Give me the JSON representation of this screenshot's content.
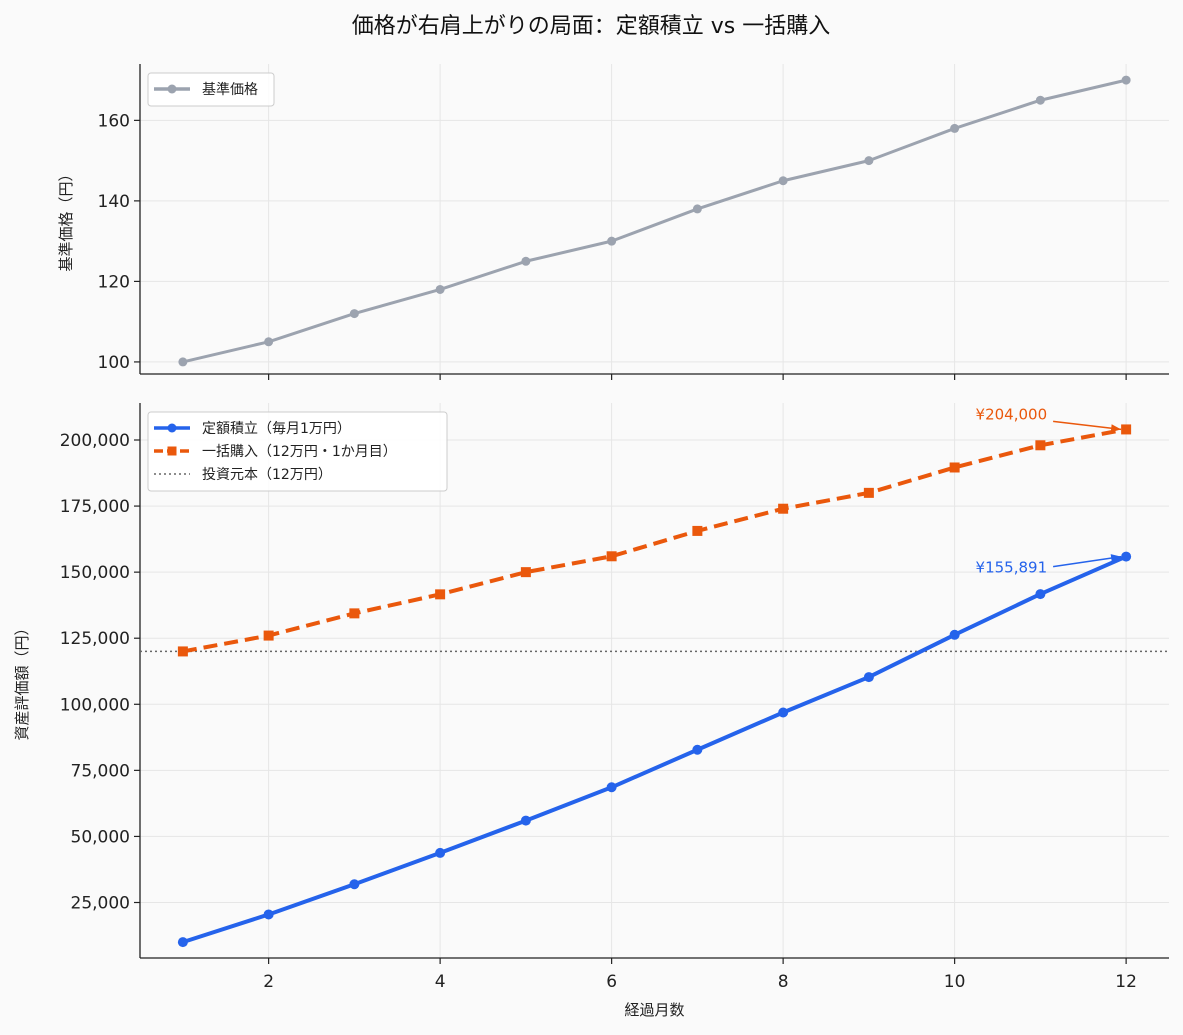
{
  "figure": {
    "title": "価格が右肩上がりの局面：定額積立 vs 一括購入"
  },
  "chart_data": [
    {
      "type": "line",
      "id": "price",
      "xlabel": "",
      "ylabel": "基準価格（円）",
      "xlim": [
        0.5,
        12.5
      ],
      "ylim": [
        97,
        174
      ],
      "yticks": [
        100,
        120,
        140,
        160
      ],
      "ytick_labels": [
        "100",
        "120",
        "140",
        "160"
      ],
      "xticks": [
        2,
        4,
        6,
        8,
        10,
        12
      ],
      "xtick_labels": [
        "",
        "",
        "",
        "",
        "",
        ""
      ],
      "grid": true,
      "legend_position": "top-left",
      "x": [
        1,
        2,
        3,
        4,
        5,
        6,
        7,
        8,
        9,
        10,
        11,
        12
      ],
      "series": [
        {
          "name": "基準価格",
          "color": "#9ca3af",
          "style": "solid",
          "marker": "circle",
          "values": [
            100,
            105,
            112,
            118,
            125,
            130,
            138,
            145,
            150,
            158,
            165,
            170
          ]
        }
      ]
    },
    {
      "type": "line",
      "id": "value",
      "xlabel": "経過月数",
      "ylabel": "資産評価額（円）",
      "xlim": [
        0.5,
        12.5
      ],
      "ylim": [
        4000,
        214000
      ],
      "yticks": [
        25000,
        50000,
        75000,
        100000,
        125000,
        150000,
        175000,
        200000
      ],
      "ytick_labels": [
        "25,000",
        "50,000",
        "75,000",
        "100,000",
        "125,000",
        "150,000",
        "175,000",
        "200,000"
      ],
      "xticks": [
        2,
        4,
        6,
        8,
        10,
        12
      ],
      "xtick_labels": [
        "2",
        "4",
        "6",
        "8",
        "10",
        "12"
      ],
      "grid": true,
      "legend_position": "top-left",
      "x": [
        1,
        2,
        3,
        4,
        5,
        6,
        7,
        8,
        9,
        10,
        11,
        12
      ],
      "series": [
        {
          "name": "定額積立（毎月1万円）",
          "color": "#2563eb",
          "style": "solid",
          "marker": "circle",
          "values": [
            10000,
            20476,
            31905,
            43765,
            56000,
            68600,
            82800,
            96900,
            110300,
            126300,
            141700,
            155891
          ]
        },
        {
          "name": "一括購入（12万円・1か月目）",
          "color": "#ea580c",
          "style": "dashed",
          "marker": "square",
          "values": [
            120000,
            126000,
            134400,
            141600,
            150000,
            156000,
            165600,
            174000,
            180000,
            189600,
            198000,
            204000
          ]
        }
      ],
      "reference_lines": [
        {
          "name": "投資元本（12万円）",
          "y": 120000,
          "color": "#666666",
          "style": "dotted"
        }
      ],
      "annotations": [
        {
          "text": "¥204,000",
          "x": 12,
          "y": 204000,
          "color": "#ea580c"
        },
        {
          "text": "¥155,891",
          "x": 12,
          "y": 155891,
          "color": "#2563eb"
        }
      ]
    }
  ]
}
